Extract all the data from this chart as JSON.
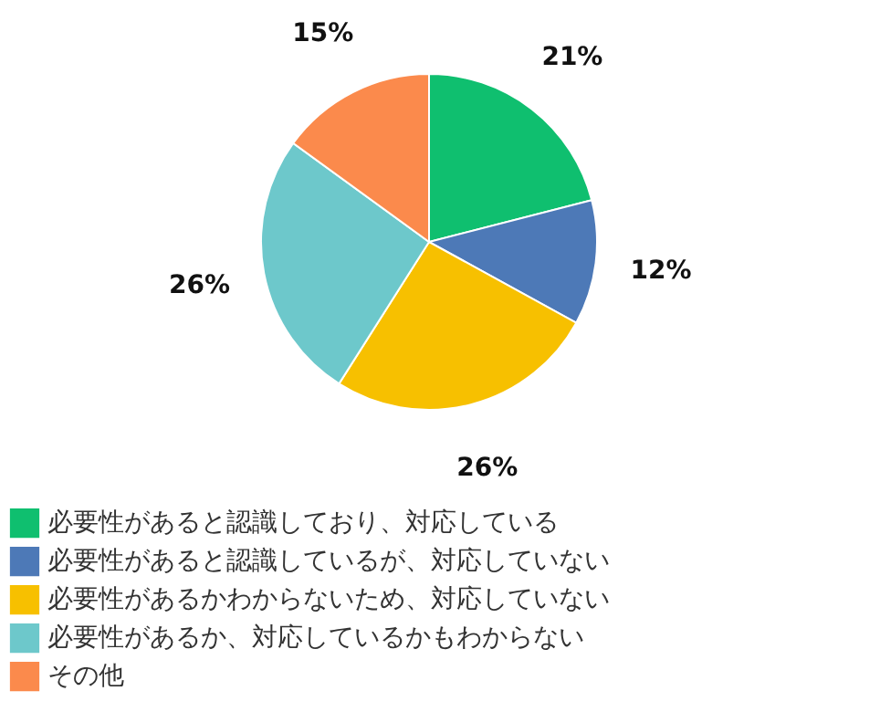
{
  "chart_data": {
    "type": "pie",
    "categories": [
      "必要性があると認識しており、対応している",
      "必要性があると認識しているが、対応していない",
      "必要性があるかわからないため、対応していない",
      "必要性があるか、対応しているかもわからない",
      "その他"
    ],
    "values": [
      21,
      12,
      26,
      26,
      15
    ],
    "colors": [
      "#0fbf6f",
      "#4d79b7",
      "#f7c000",
      "#6dc8cb",
      "#fb8a4c"
    ],
    "value_labels": [
      "21%",
      "12%",
      "26%",
      "26%",
      "15%"
    ],
    "legend": "bottom"
  }
}
